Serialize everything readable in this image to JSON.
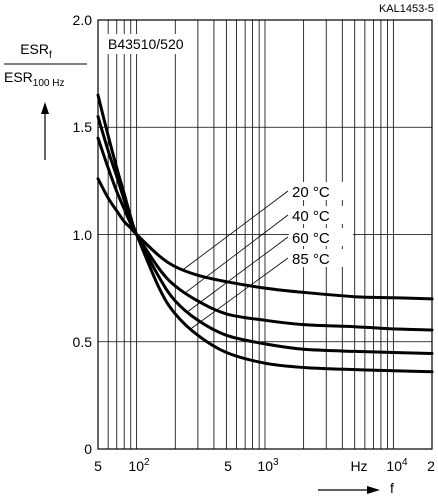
{
  "chart_data": {
    "type": "line",
    "figure_code": "KAL1453-5",
    "title": "B43510/520",
    "ylabel": {
      "numerator_base": "ESR",
      "numerator_sub": "f",
      "denominator_base": "ESR",
      "denominator_sub": "100 Hz"
    },
    "xlabel": "f",
    "x_scale": "log",
    "xlim": [
      50,
      20000
    ],
    "ylim": [
      0,
      2.0
    ],
    "y_ticks": [
      "0",
      "0.5",
      "1.0",
      "1.5",
      "2.0"
    ],
    "x_tick_labels": {
      "t50": "5",
      "t100_base": "10",
      "t100_exp": "2",
      "t500": "5",
      "t1000_base": "10",
      "t1000_exp": "3",
      "hz": "Hz",
      "t10000_base": "10",
      "t10000_exp": "4",
      "t20000": "2"
    },
    "grid": true,
    "series": [
      {
        "name": "20 °C",
        "x": [
          50,
          60,
          70,
          80,
          90,
          100,
          150,
          200,
          300,
          500,
          1000,
          2000,
          5000,
          10000,
          20000
        ],
        "y": [
          1.26,
          1.17,
          1.11,
          1.06,
          1.03,
          1.0,
          0.9,
          0.85,
          0.81,
          0.78,
          0.75,
          0.73,
          0.71,
          0.705,
          0.7
        ]
      },
      {
        "name": "40 °C",
        "x": [
          50,
          60,
          70,
          80,
          90,
          100,
          150,
          200,
          300,
          500,
          1000,
          2000,
          5000,
          10000,
          20000
        ],
        "y": [
          1.45,
          1.31,
          1.2,
          1.12,
          1.05,
          1.0,
          0.84,
          0.76,
          0.69,
          0.63,
          0.6,
          0.58,
          0.57,
          0.56,
          0.555
        ]
      },
      {
        "name": "60 °C",
        "x": [
          50,
          60,
          70,
          80,
          90,
          100,
          150,
          200,
          300,
          500,
          1000,
          2000,
          5000,
          10000,
          20000
        ],
        "y": [
          1.55,
          1.39,
          1.27,
          1.16,
          1.07,
          1.0,
          0.8,
          0.69,
          0.6,
          0.53,
          0.49,
          0.465,
          0.455,
          0.45,
          0.445
        ]
      },
      {
        "name": "85 °C",
        "x": [
          50,
          60,
          70,
          80,
          90,
          100,
          150,
          200,
          300,
          500,
          1000,
          2000,
          5000,
          10000,
          20000
        ],
        "y": [
          1.65,
          1.46,
          1.31,
          1.19,
          1.08,
          1.0,
          0.75,
          0.63,
          0.53,
          0.45,
          0.4,
          0.38,
          0.37,
          0.365,
          0.36
        ]
      }
    ]
  }
}
